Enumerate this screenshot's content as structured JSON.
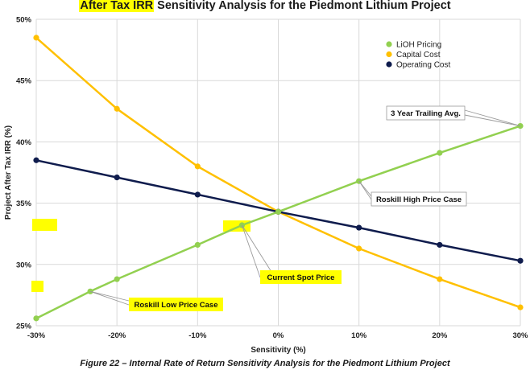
{
  "title": {
    "highlighted": "After Tax IRR",
    "rest": " Sensitivity Analysis for the Piedmont Lithium Project"
  },
  "caption": "Figure 22 – Internal Rate of Return Sensitivity Analysis for the Piedmont Lithium Project",
  "colors": {
    "lioh": "#92d050",
    "capital": "#ffc000",
    "operating": "#0f1c4d",
    "highlight": "#ffff00",
    "grid": "#d9d9d9"
  },
  "chart_data": {
    "type": "line",
    "xlabel": "Sensitivity (%)",
    "ylabel": "Project After Tax IRR (%)",
    "xlim": [
      -30,
      30
    ],
    "ylim": [
      25,
      50
    ],
    "x_ticks": [
      -30,
      -20,
      -10,
      0,
      10,
      20,
      30
    ],
    "x_tick_labels": [
      "-30%",
      "-20%",
      "-10%",
      "0%",
      "10%",
      "20%",
      "30%"
    ],
    "y_ticks": [
      25,
      30,
      35,
      40,
      45,
      50
    ],
    "y_tick_labels": [
      "25%",
      "30%",
      "35%",
      "40%",
      "45%",
      "50%"
    ],
    "legend_position": "top-right",
    "series": [
      {
        "name": "LiOH Pricing",
        "color": "#92d050",
        "points": [
          [
            -30,
            25.6
          ],
          [
            -23.3,
            27.8
          ],
          [
            -20,
            28.8
          ],
          [
            -10,
            31.6
          ],
          [
            -4.5,
            33.2
          ],
          [
            0,
            34.3
          ],
          [
            10,
            36.8
          ],
          [
            20,
            39.1
          ],
          [
            30,
            41.3
          ]
        ]
      },
      {
        "name": "Capital Cost",
        "color": "#ffc000",
        "points": [
          [
            -30,
            48.5
          ],
          [
            -20,
            42.7
          ],
          [
            -10,
            38.0
          ],
          [
            0,
            34.3
          ],
          [
            10,
            31.3
          ],
          [
            20,
            28.8
          ],
          [
            30,
            26.5
          ]
        ]
      },
      {
        "name": "Operating Cost",
        "color": "#0f1c4d",
        "points": [
          [
            -30,
            38.5
          ],
          [
            -20,
            37.1
          ],
          [
            -10,
            35.7
          ],
          [
            0,
            34.3
          ],
          [
            10,
            33.0
          ],
          [
            20,
            31.6
          ],
          [
            30,
            30.3
          ]
        ]
      }
    ],
    "annotations": [
      {
        "text": "3 Year Trailing Avg.",
        "target": [
          30,
          41.3
        ],
        "highlighted": false
      },
      {
        "text": "Roskill High Price Case",
        "target": [
          10,
          36.8
        ],
        "highlighted": false
      },
      {
        "text": "Current Spot Price",
        "target": [
          -4.5,
          33.2
        ],
        "highlighted": true
      },
      {
        "text": "Roskill Low Price Case",
        "target": [
          -23.3,
          27.8
        ],
        "highlighted": true
      }
    ]
  }
}
